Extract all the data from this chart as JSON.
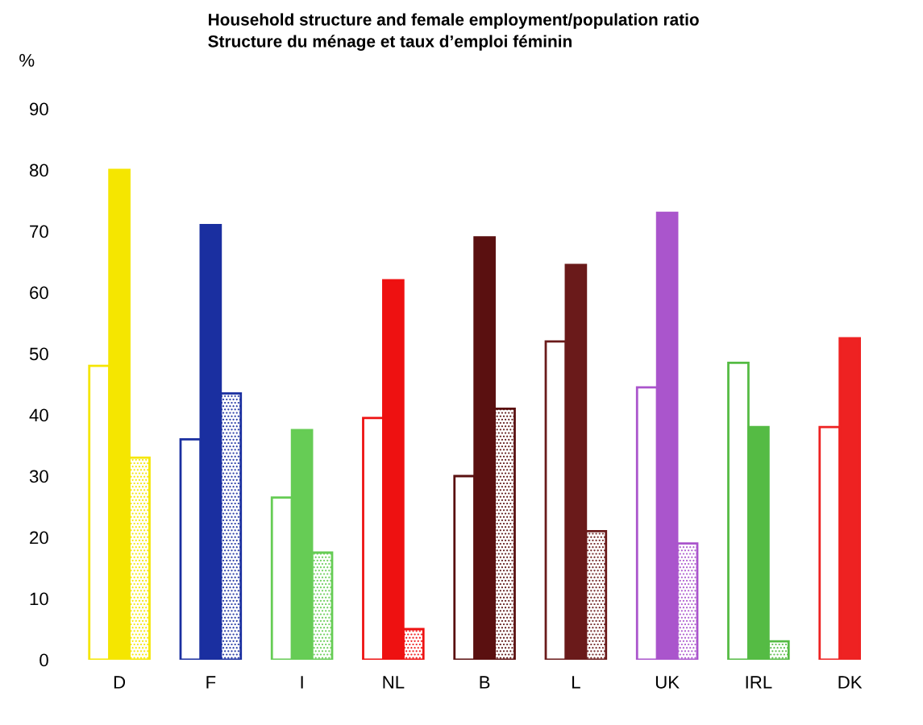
{
  "chart_data": {
    "type": "bar",
    "title": "Household structure and female employment/population ratio",
    "subtitle": "Structure du ménage et taux d’emploi féminin",
    "ylabel": "%",
    "categories": [
      "D",
      "F",
      "I",
      "NL",
      "B",
      "L",
      "UK",
      "IRL",
      "DK"
    ],
    "series": [
      {
        "values": [
          48,
          36,
          26.5,
          39.5,
          30,
          52,
          44.5,
          48.5,
          38
        ],
        "colors": [
          "#f5e600",
          "#1a2fa0",
          "#66cc55",
          "#ee1111",
          "#5a1010",
          "#6a1a1a",
          "#aa55cc",
          "#55bb44",
          "#ee2222"
        ]
      },
      {
        "values": [
          80,
          71,
          37.5,
          62,
          69,
          64.5,
          73,
          38,
          52.5
        ],
        "colors": [
          "#f5e600",
          "#1a2fa0",
          "#66cc55",
          "#ee1111",
          "#5a1010",
          "#6a1a1a",
          "#aa55cc",
          "#55bb44",
          "#ee2222"
        ]
      },
      {
        "values": [
          33,
          43.5,
          17.5,
          5,
          41,
          21,
          19,
          3,
          null
        ],
        "colors": [
          "#f5e600",
          "#1a2fa0",
          "#66cc55",
          "#ee1111",
          "#5a1010",
          "#6a1a1a",
          "#aa55cc",
          "#55bb44",
          "#ee2222"
        ]
      }
    ],
    "ylim": [
      0,
      90
    ],
    "yticks": [
      0,
      10,
      20,
      30,
      40,
      50,
      60,
      70,
      80,
      90
    ],
    "grid": false,
    "legend": false
  }
}
